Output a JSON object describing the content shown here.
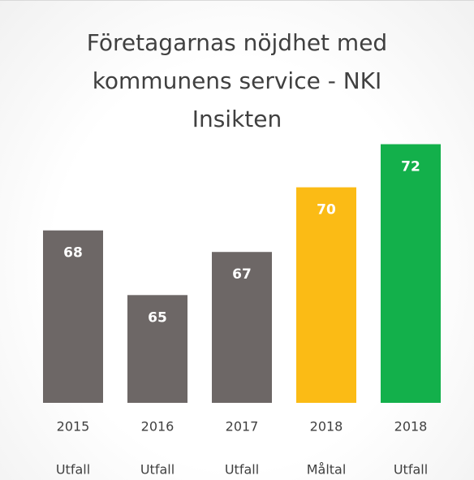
{
  "chart_data": {
    "type": "bar",
    "title": "Företagarnas nöjdhet med kommunens service - NKI Insikten",
    "categories": [
      [
        "2015",
        "Utfall"
      ],
      [
        "2016",
        "Utfall"
      ],
      [
        "2017",
        "Utfall"
      ],
      [
        "2018",
        "Måltal"
      ],
      [
        "2018",
        "Utfall"
      ]
    ],
    "values": [
      68,
      65,
      67,
      70,
      72
    ],
    "colors": [
      "#6d6766",
      "#6d6766",
      "#6d6766",
      "#fbbb15",
      "#13b04b"
    ],
    "ylim": [
      60,
      73
    ]
  }
}
